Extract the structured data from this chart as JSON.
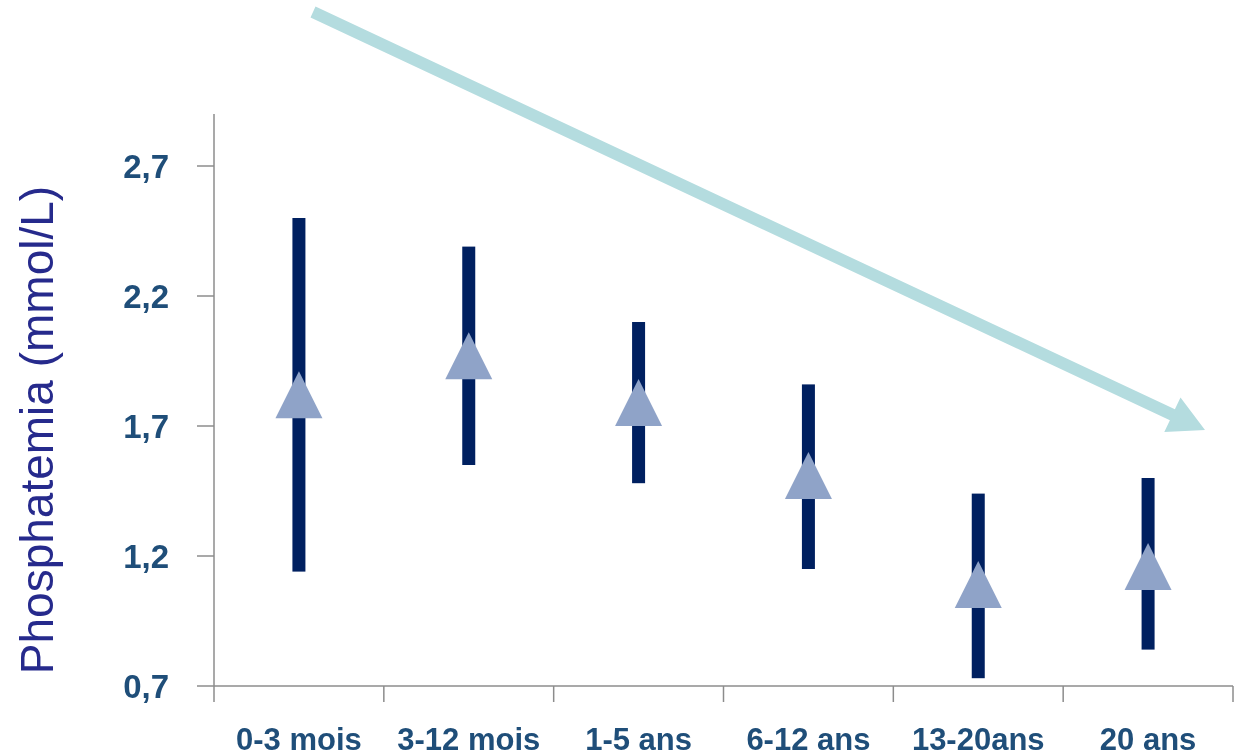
{
  "chart_data": {
    "type": "bar",
    "ylabel": "Phosphatemia (mmol/L)",
    "categories": [
      "0-3 mois",
      "3-12 mois",
      "1-5 ans",
      "6-12 ans",
      "13-20ans",
      "20 ans"
    ],
    "series": [
      {
        "color": "#002060",
        "base": [
          1.14,
          1.55,
          1.48,
          1.15,
          0.73,
          0.84
        ],
        "values": [
          1.36,
          0.84,
          0.62,
          0.71,
          0.71,
          0.66
        ]
      },
      {
        "type": "scatter",
        "color": "#8fa3c8",
        "marker": "triangle",
        "x": [
          "0-3 mois",
          "3-12 mois",
          "1-5 ans",
          "6-12 ans",
          "13-20ans",
          "20 ans"
        ],
        "values": [
          1.82,
          1.97,
          1.79,
          1.51,
          1.09,
          1.16
        ]
      }
    ],
    "ylim": [
      0.7,
      2.9
    ],
    "yticks": [
      {
        "value": 0.7,
        "label": "0,7"
      },
      {
        "value": 1.2,
        "label": "1,2"
      },
      {
        "value": 1.7,
        "label": "1,7"
      },
      {
        "value": 2.2,
        "label": "2,2"
      },
      {
        "value": 2.7,
        "label": "2,7"
      }
    ]
  }
}
